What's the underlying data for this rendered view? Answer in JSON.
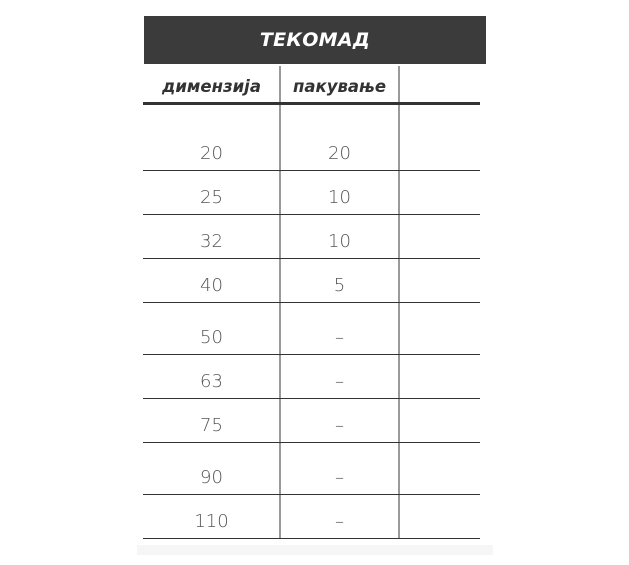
{
  "table": {
    "title": "ТЕКОМАД",
    "headers": [
      "димензија",
      "пакување",
      ""
    ],
    "rows": [
      {
        "dimension": "20",
        "packaging": "20",
        "extra": ""
      },
      {
        "dimension": "25",
        "packaging": "10",
        "extra": ""
      },
      {
        "dimension": "32",
        "packaging": "10",
        "extra": ""
      },
      {
        "dimension": "40",
        "packaging": "5",
        "extra": ""
      },
      {
        "dimension": "50",
        "packaging": "–",
        "extra": ""
      },
      {
        "dimension": "63",
        "packaging": "–",
        "extra": ""
      },
      {
        "dimension": "75",
        "packaging": "–",
        "extra": ""
      },
      {
        "dimension": "90",
        "packaging": "–",
        "extra": ""
      },
      {
        "dimension": "110",
        "packaging": "–",
        "extra": ""
      }
    ],
    "colors": {
      "title_bg": "#3b3b3b",
      "title_text": "#ffffff",
      "rule": "#333333"
    }
  }
}
